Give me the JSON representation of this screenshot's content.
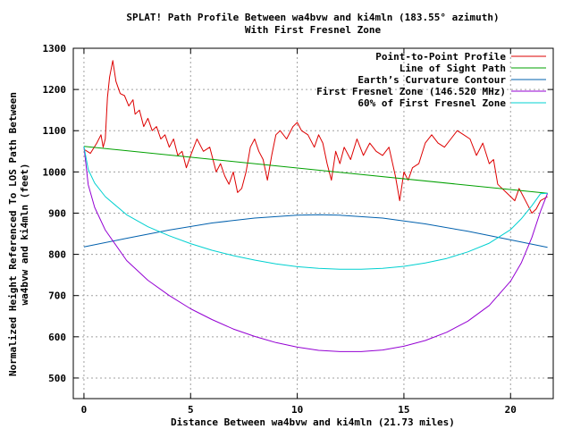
{
  "chart_data": {
    "type": "line",
    "title": "SPLAT! Path Profile Between wa4bvw and ki4mln (183.55° azimuth)",
    "subtitle": "With First Fresnel Zone",
    "xlabel": "Distance Between wa4bvw and ki4mln (21.73 miles)",
    "ylabel_line1": "Normalized Height Referenced To LOS Path Between",
    "ylabel_line2": "wa4bvw and ki4mln (feet)",
    "xlim": [
      -0.5,
      22
    ],
    "ylim": [
      450,
      1300
    ],
    "xticks": [
      0,
      5,
      10,
      15,
      20
    ],
    "yticks": [
      500,
      600,
      700,
      800,
      900,
      1000,
      1100,
      1200,
      1300
    ],
    "grid": true,
    "legend_position": "top-right",
    "series": [
      {
        "name": "Point-to-Point Profile",
        "color": "#dd0000",
        "points": [
          [
            0,
            1055
          ],
          [
            0.3,
            1045
          ],
          [
            0.6,
            1070
          ],
          [
            0.8,
            1090
          ],
          [
            0.9,
            1060
          ],
          [
            1.0,
            1080
          ],
          [
            1.1,
            1180
          ],
          [
            1.2,
            1230
          ],
          [
            1.35,
            1270
          ],
          [
            1.5,
            1220
          ],
          [
            1.7,
            1190
          ],
          [
            1.9,
            1185
          ],
          [
            2.1,
            1160
          ],
          [
            2.3,
            1175
          ],
          [
            2.4,
            1140
          ],
          [
            2.6,
            1150
          ],
          [
            2.8,
            1110
          ],
          [
            3.0,
            1130
          ],
          [
            3.2,
            1100
          ],
          [
            3.4,
            1110
          ],
          [
            3.6,
            1080
          ],
          [
            3.8,
            1090
          ],
          [
            4.0,
            1060
          ],
          [
            4.2,
            1080
          ],
          [
            4.4,
            1040
          ],
          [
            4.6,
            1050
          ],
          [
            4.8,
            1010
          ],
          [
            5.0,
            1040
          ],
          [
            5.3,
            1080
          ],
          [
            5.6,
            1050
          ],
          [
            5.9,
            1060
          ],
          [
            6.2,
            1000
          ],
          [
            6.4,
            1020
          ],
          [
            6.6,
            990
          ],
          [
            6.8,
            970
          ],
          [
            7.0,
            1000
          ],
          [
            7.2,
            950
          ],
          [
            7.4,
            960
          ],
          [
            7.6,
            1000
          ],
          [
            7.8,
            1060
          ],
          [
            8.0,
            1080
          ],
          [
            8.2,
            1050
          ],
          [
            8.4,
            1030
          ],
          [
            8.6,
            980
          ],
          [
            8.8,
            1040
          ],
          [
            9.0,
            1090
          ],
          [
            9.2,
            1100
          ],
          [
            9.5,
            1080
          ],
          [
            9.8,
            1110
          ],
          [
            10.0,
            1120
          ],
          [
            10.2,
            1100
          ],
          [
            10.5,
            1090
          ],
          [
            10.8,
            1060
          ],
          [
            11.0,
            1090
          ],
          [
            11.2,
            1070
          ],
          [
            11.4,
            1020
          ],
          [
            11.6,
            980
          ],
          [
            11.8,
            1050
          ],
          [
            12.0,
            1020
          ],
          [
            12.2,
            1060
          ],
          [
            12.5,
            1030
          ],
          [
            12.8,
            1080
          ],
          [
            13.1,
            1040
          ],
          [
            13.4,
            1070
          ],
          [
            13.7,
            1050
          ],
          [
            14.0,
            1040
          ],
          [
            14.3,
            1060
          ],
          [
            14.6,
            990
          ],
          [
            14.8,
            930
          ],
          [
            15.0,
            1000
          ],
          [
            15.2,
            980
          ],
          [
            15.4,
            1010
          ],
          [
            15.7,
            1020
          ],
          [
            16.0,
            1070
          ],
          [
            16.3,
            1090
          ],
          [
            16.6,
            1070
          ],
          [
            16.9,
            1060
          ],
          [
            17.2,
            1080
          ],
          [
            17.5,
            1100
          ],
          [
            17.8,
            1090
          ],
          [
            18.1,
            1080
          ],
          [
            18.4,
            1040
          ],
          [
            18.7,
            1070
          ],
          [
            19.0,
            1020
          ],
          [
            19.2,
            1030
          ],
          [
            19.4,
            970
          ],
          [
            19.6,
            960
          ],
          [
            19.8,
            950
          ],
          [
            20.0,
            940
          ],
          [
            20.2,
            930
          ],
          [
            20.4,
            960
          ],
          [
            20.6,
            940
          ],
          [
            20.8,
            920
          ],
          [
            21.0,
            900
          ],
          [
            21.2,
            910
          ],
          [
            21.4,
            930
          ],
          [
            21.73,
            940
          ]
        ]
      },
      {
        "name": "Line of Sight Path",
        "color": "#00a000",
        "points": [
          [
            0,
            1062
          ],
          [
            21.73,
            948
          ]
        ]
      },
      {
        "name": "Earth’s Curvature Contour",
        "color": "#0060ad",
        "points": [
          [
            0,
            818
          ],
          [
            2,
            839
          ],
          [
            4,
            859
          ],
          [
            6,
            876
          ],
          [
            8,
            888
          ],
          [
            10,
            895
          ],
          [
            11,
            896
          ],
          [
            12,
            895
          ],
          [
            14,
            888
          ],
          [
            16,
            874
          ],
          [
            18,
            856
          ],
          [
            20,
            835
          ],
          [
            21.73,
            817
          ]
        ]
      },
      {
        "name": "First Fresnel Zone (146.520 MHz)",
        "color": "#9400d3",
        "points": [
          [
            0,
            1062
          ],
          [
            0.2,
            969
          ],
          [
            0.5,
            914
          ],
          [
            1,
            859
          ],
          [
            2,
            785
          ],
          [
            3,
            737
          ],
          [
            4,
            700
          ],
          [
            5,
            668
          ],
          [
            6,
            642
          ],
          [
            7,
            619
          ],
          [
            8,
            601
          ],
          [
            9,
            586
          ],
          [
            10,
            575
          ],
          [
            11,
            567
          ],
          [
            12,
            564
          ],
          [
            13,
            564
          ],
          [
            14,
            568
          ],
          [
            15,
            577
          ],
          [
            16,
            591
          ],
          [
            17,
            611
          ],
          [
            18,
            638
          ],
          [
            19,
            676
          ],
          [
            20,
            735
          ],
          [
            20.5,
            779
          ],
          [
            21,
            841
          ],
          [
            21.4,
            904
          ],
          [
            21.73,
            948
          ]
        ]
      },
      {
        "name": "60% of First Fresnel Zone",
        "color": "#00d0d0",
        "points": [
          [
            0,
            1062
          ],
          [
            0.2,
            1006
          ],
          [
            0.5,
            973
          ],
          [
            1,
            940
          ],
          [
            2,
            896
          ],
          [
            3,
            867
          ],
          [
            4,
            845
          ],
          [
            5,
            826
          ],
          [
            6,
            810
          ],
          [
            7,
            797
          ],
          [
            8,
            786
          ],
          [
            9,
            777
          ],
          [
            10,
            770
          ],
          [
            11,
            766
          ],
          [
            12,
            764
          ],
          [
            13,
            764
          ],
          [
            14,
            766
          ],
          [
            15,
            771
          ],
          [
            16,
            779
          ],
          [
            17,
            790
          ],
          [
            18,
            806
          ],
          [
            19,
            827
          ],
          [
            20,
            860
          ],
          [
            20.5,
            886
          ],
          [
            21,
            918
          ],
          [
            21.4,
            947
          ],
          [
            21.73,
            948
          ]
        ]
      }
    ]
  }
}
